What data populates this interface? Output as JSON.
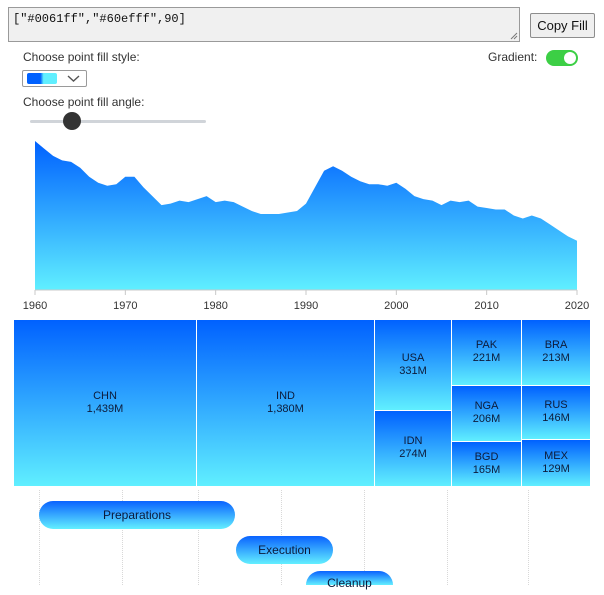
{
  "code_value": "[\"#0061ff\",\"#60efff\",90]",
  "copy_button_label": "Copy Fill",
  "fill_style_label": "Choose point fill style:",
  "fill_angle_label": "Choose point fill angle:",
  "gradient_label": "Gradient:",
  "gradient_enabled": true,
  "angle_slider_level": 0.24,
  "colors": {
    "start": "#0061ff",
    "end": "#60efff",
    "toggle": "#3ccf45"
  },
  "icons": {
    "select_chevron": "chevron-down-icon",
    "resize_grip": "resize-grip-icon"
  },
  "chart_data": [
    {
      "type": "area",
      "xlim": [
        1960,
        2020
      ],
      "x_ticks": [
        1960,
        1970,
        1980,
        1990,
        2000,
        2010,
        2020
      ],
      "x": [
        1960,
        1961,
        1962,
        1963,
        1964,
        1965,
        1966,
        1967,
        1968,
        1969,
        1970,
        1971,
        1972,
        1973,
        1974,
        1975,
        1976,
        1977,
        1978,
        1979,
        1980,
        1981,
        1982,
        1983,
        1984,
        1985,
        1986,
        1987,
        1988,
        1989,
        1990,
        1991,
        1992,
        1993,
        1994,
        1995,
        1996,
        1997,
        1998,
        1999,
        2000,
        2001,
        2002,
        2003,
        2004,
        2005,
        2006,
        2007,
        2008,
        2009,
        2010,
        2011,
        2012,
        2013,
        2014,
        2015,
        2016,
        2017,
        2018,
        2019,
        2020
      ],
      "y": [
        100,
        95,
        90,
        87,
        86,
        82,
        76,
        72,
        70,
        71,
        76,
        76,
        69,
        63,
        57,
        58,
        60,
        59,
        61,
        63,
        59,
        60,
        59,
        56,
        53,
        51,
        51,
        51,
        52,
        53,
        58,
        69,
        80,
        83,
        80,
        76,
        73,
        71,
        71,
        70,
        72,
        68,
        63,
        61,
        60,
        57,
        60,
        59,
        60,
        56,
        55,
        54,
        54,
        50,
        48,
        50,
        48,
        44,
        40,
        36,
        33
      ],
      "ylim": [
        0,
        100
      ]
    },
    {
      "type": "treemap",
      "items": [
        {
          "code": "CHN",
          "value": "1,439M"
        },
        {
          "code": "IND",
          "value": "1,380M"
        },
        {
          "code": "USA",
          "value": "331M"
        },
        {
          "code": "IDN",
          "value": "274M"
        },
        {
          "code": "PAK",
          "value": "221M"
        },
        {
          "code": "NGA",
          "value": "206M"
        },
        {
          "code": "BGD",
          "value": "165M"
        },
        {
          "code": "BRA",
          "value": "213M"
        },
        {
          "code": "RUS",
          "value": "146M"
        },
        {
          "code": "MEX",
          "value": "129M"
        }
      ]
    },
    {
      "type": "gantt",
      "tasks": [
        {
          "name": "Preparations"
        },
        {
          "name": "Execution"
        },
        {
          "name": "Cleanup"
        }
      ]
    }
  ]
}
